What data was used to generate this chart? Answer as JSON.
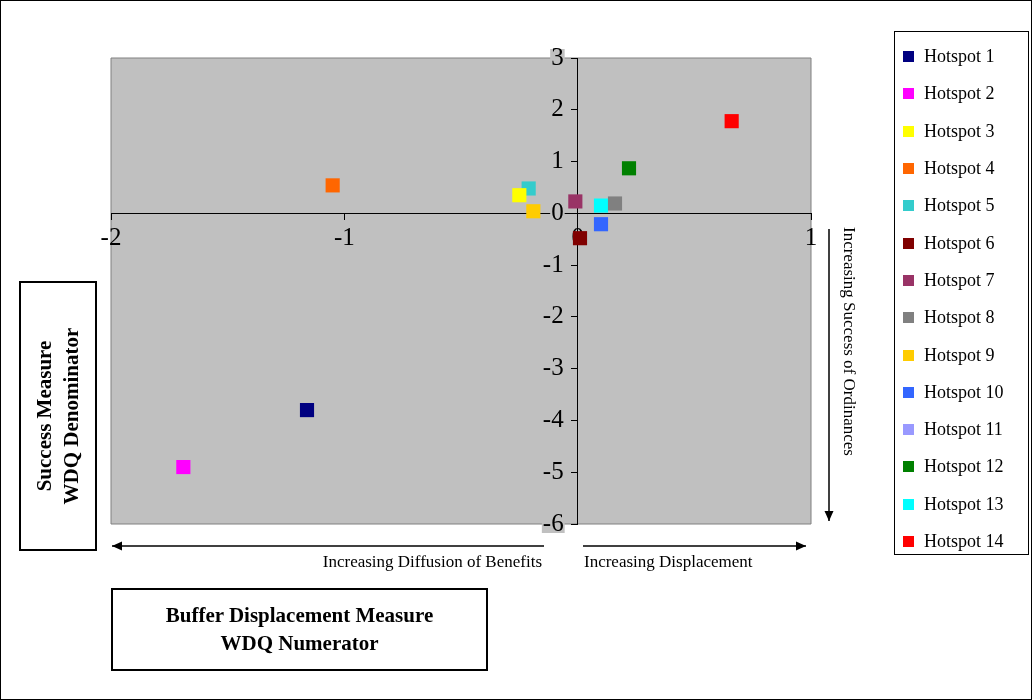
{
  "chart_data": {
    "type": "scatter",
    "xlabel": "Buffer Displacement Measure\nWDQ Numerator",
    "ylabel": "Success Measure\nWDQ Denominator",
    "annotations": [
      "Increasing Diffusion of Benefits",
      "Increasing Displacement",
      "Increasing Success of Ordinances"
    ],
    "xlim": [
      -2,
      1
    ],
    "xticks": [
      -2,
      -1,
      0,
      1
    ],
    "ylim": [
      -6,
      3
    ],
    "yticks": [
      -6,
      -5,
      -4,
      -3,
      -2,
      -1,
      0,
      1,
      2,
      3
    ],
    "grid": false,
    "legend": "right",
    "marker": "square",
    "series": [
      {
        "name": "Hotspot 1",
        "color": "#000080",
        "x": [
          -1.16
        ],
        "values": [
          -3.8
        ]
      },
      {
        "name": "Hotspot 2",
        "color": "#ff00ff",
        "x": [
          -1.69
        ],
        "values": [
          -4.9
        ]
      },
      {
        "name": "Hotspot 3",
        "color": "#ffff00",
        "x": [
          -0.25
        ],
        "values": [
          0.35
        ]
      },
      {
        "name": "Hotspot 4",
        "color": "#ff6600",
        "x": [
          -1.05
        ],
        "values": [
          0.54
        ]
      },
      {
        "name": "Hotspot 5",
        "color": "#33cccc",
        "x": [
          -0.21
        ],
        "values": [
          0.48
        ]
      },
      {
        "name": "Hotspot 6",
        "color": "#800000",
        "x": [
          0.01
        ],
        "values": [
          -0.48
        ]
      },
      {
        "name": "Hotspot 7",
        "color": "#993366",
        "x": [
          -0.01
        ],
        "values": [
          0.23
        ]
      },
      {
        "name": "Hotspot 8",
        "color": "#808080",
        "x": [
          0.16
        ],
        "values": [
          0.19
        ]
      },
      {
        "name": "Hotspot 9",
        "color": "#ffcc00",
        "x": [
          -0.19
        ],
        "values": [
          0.04
        ]
      },
      {
        "name": "Hotspot 10",
        "color": "#3366ff",
        "x": [
          0.1
        ],
        "values": [
          -0.21
        ]
      },
      {
        "name": "Hotspot 11",
        "color": "#9999ff",
        "x": [
          null
        ],
        "values": [
          null
        ]
      },
      {
        "name": "Hotspot 12",
        "color": "#008000",
        "x": [
          0.22
        ],
        "values": [
          0.87
        ]
      },
      {
        "name": "Hotspot 13",
        "color": "#00ffff",
        "x": [
          0.1
        ],
        "values": [
          0.15
        ]
      },
      {
        "name": "Hotspot 14",
        "color": "#ff0000",
        "x": [
          0.66
        ],
        "values": [
          1.78
        ]
      }
    ]
  }
}
